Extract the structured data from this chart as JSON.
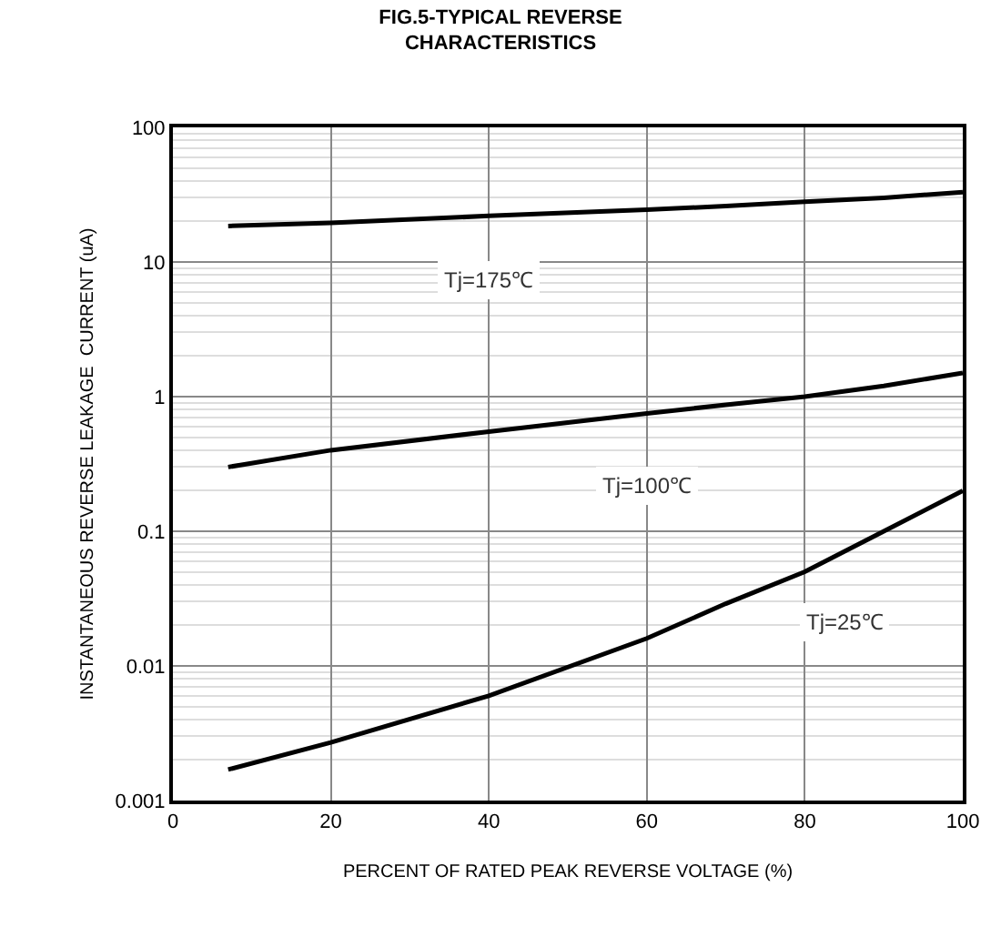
{
  "chart_data": {
    "type": "line",
    "title": "FIG.5-TYPICAL REVERSE\nCHARACTERISTICS",
    "xlabel": "PERCENT OF RATED PEAK REVERSE VOLTAGE (%)",
    "ylabel": "INSTANTANEOUS REVERSE LEAKAGE  CURRENT (uA)",
    "x": [
      7,
      20,
      40,
      60,
      70,
      80,
      90,
      100
    ],
    "series": [
      {
        "name": "Tj=175℃",
        "color": "#000000",
        "values": [
          18.5,
          19.5,
          22,
          24.5,
          26,
          28,
          30,
          33
        ]
      },
      {
        "name": "Tj=100℃",
        "color": "#000000",
        "values": [
          0.3,
          0.4,
          0.55,
          0.75,
          0.87,
          1.0,
          1.2,
          1.5
        ]
      },
      {
        "name": "Tj=25℃",
        "color": "#000000",
        "values": [
          0.0017,
          0.0027,
          0.006,
          0.016,
          0.029,
          0.05,
          0.1,
          0.2
        ]
      }
    ],
    "xlim": [
      0,
      100
    ],
    "xticks": [
      0,
      20,
      40,
      60,
      80,
      100
    ],
    "ylim": [
      0.001,
      100
    ],
    "yticks": [
      0.001,
      0.01,
      0.1,
      1,
      10,
      100
    ],
    "log": "y",
    "grid": true,
    "legend": false,
    "marker": "none",
    "line_style": "solid"
  }
}
